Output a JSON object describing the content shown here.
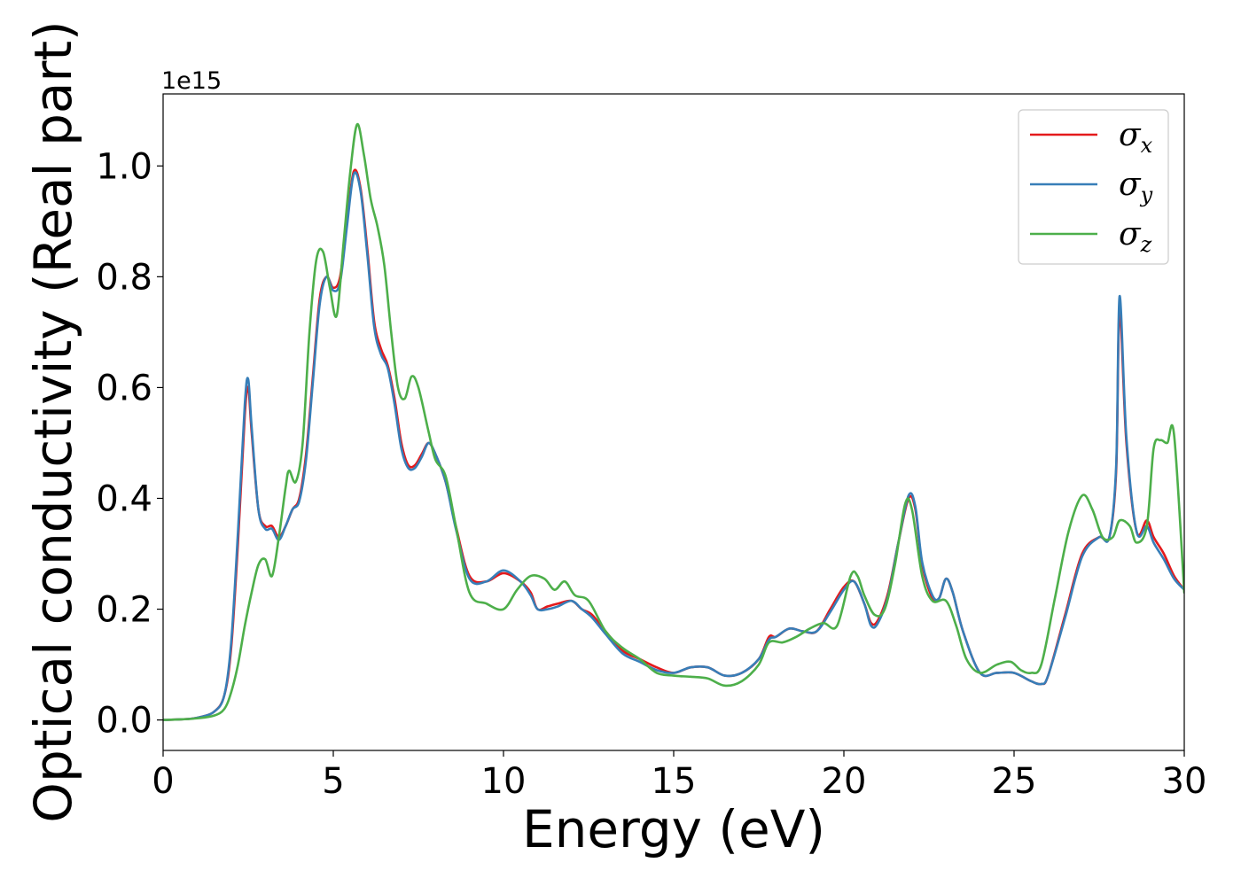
{
  "chart_data": {
    "type": "line",
    "xlabel": "Energy (eV)",
    "ylabel": "Optical conductivity (Real part)",
    "y_offset_text": "1e15",
    "xlim": [
      0,
      30
    ],
    "ylim": [
      -0.055,
      1.13
    ],
    "y_scale_factor": 1000000000000000.0,
    "x_ticks": [
      0,
      5,
      10,
      15,
      20,
      25,
      30
    ],
    "x_tick_labels": [
      "0",
      "5",
      "10",
      "15",
      "20",
      "25",
      "30"
    ],
    "y_ticks": [
      0.0,
      0.2,
      0.4,
      0.6,
      0.8,
      1.0
    ],
    "y_tick_labels": [
      "0.0",
      "0.2",
      "0.4",
      "0.6",
      "0.8",
      "1.0"
    ],
    "grid": false,
    "legend_position": "top-right",
    "series": [
      {
        "name": "σx",
        "symbol": "σ",
        "subscript": "x",
        "color": "#e41a1c",
        "x": [
          0,
          0.5,
          1.0,
          1.5,
          1.8,
          2.0,
          2.2,
          2.4,
          2.5,
          2.6,
          2.8,
          3.0,
          3.2,
          3.4,
          3.6,
          3.8,
          4.0,
          4.2,
          4.4,
          4.6,
          4.8,
          5.0,
          5.2,
          5.4,
          5.6,
          5.8,
          6.0,
          6.2,
          6.4,
          6.6,
          6.8,
          7.0,
          7.2,
          7.4,
          7.6,
          7.8,
          8.0,
          8.3,
          8.6,
          9.0,
          9.5,
          10.0,
          10.5,
          10.8,
          11.0,
          11.3,
          11.6,
          12.0,
          12.3,
          12.6,
          13.0,
          13.5,
          14.0,
          14.5,
          15.0,
          15.5,
          16.0,
          16.5,
          17.0,
          17.5,
          17.8,
          18.0,
          18.4,
          18.8,
          19.2,
          19.6,
          20.0,
          20.3,
          20.6,
          20.8,
          21.0,
          21.3,
          21.6,
          21.9,
          22.1,
          22.3,
          22.6,
          22.8,
          23.0,
          23.2,
          23.5,
          24.0,
          24.5,
          25.0,
          25.5,
          25.8,
          26.0,
          26.5,
          27.0,
          27.5,
          27.8,
          28.0,
          28.1,
          28.3,
          28.6,
          28.9,
          29.1,
          29.4,
          29.7,
          30.0
        ],
        "values": [
          0.0,
          0.001,
          0.004,
          0.015,
          0.045,
          0.13,
          0.32,
          0.55,
          0.6,
          0.52,
          0.38,
          0.35,
          0.35,
          0.33,
          0.35,
          0.38,
          0.4,
          0.48,
          0.62,
          0.76,
          0.8,
          0.78,
          0.8,
          0.9,
          0.99,
          0.96,
          0.85,
          0.72,
          0.67,
          0.64,
          0.58,
          0.5,
          0.46,
          0.46,
          0.48,
          0.5,
          0.48,
          0.43,
          0.35,
          0.26,
          0.25,
          0.265,
          0.25,
          0.23,
          0.2,
          0.205,
          0.21,
          0.215,
          0.2,
          0.19,
          0.16,
          0.125,
          0.11,
          0.095,
          0.085,
          0.095,
          0.095,
          0.08,
          0.085,
          0.11,
          0.15,
          0.15,
          0.165,
          0.16,
          0.16,
          0.2,
          0.24,
          0.25,
          0.21,
          0.175,
          0.18,
          0.23,
          0.32,
          0.4,
          0.38,
          0.28,
          0.22,
          0.22,
          0.255,
          0.23,
          0.16,
          0.085,
          0.085,
          0.085,
          0.07,
          0.065,
          0.08,
          0.19,
          0.3,
          0.33,
          0.33,
          0.45,
          0.74,
          0.5,
          0.34,
          0.36,
          0.33,
          0.3,
          0.26,
          0.235
        ]
      },
      {
        "name": "σy",
        "symbol": "σ",
        "subscript": "y",
        "color": "#377eb8",
        "x": [
          0,
          0.5,
          1.0,
          1.5,
          1.8,
          2.0,
          2.2,
          2.4,
          2.5,
          2.6,
          2.8,
          3.0,
          3.2,
          3.4,
          3.6,
          3.8,
          4.0,
          4.2,
          4.4,
          4.6,
          4.8,
          5.0,
          5.2,
          5.4,
          5.6,
          5.8,
          6.0,
          6.2,
          6.4,
          6.6,
          6.8,
          7.0,
          7.2,
          7.4,
          7.6,
          7.8,
          8.0,
          8.3,
          8.6,
          9.0,
          9.5,
          10.0,
          10.5,
          10.8,
          11.0,
          11.3,
          11.6,
          12.0,
          12.3,
          12.6,
          13.0,
          13.5,
          14.0,
          14.5,
          15.0,
          15.5,
          16.0,
          16.5,
          17.0,
          17.5,
          17.8,
          18.0,
          18.4,
          18.8,
          19.2,
          19.6,
          20.0,
          20.3,
          20.6,
          20.8,
          21.0,
          21.3,
          21.6,
          21.9,
          22.1,
          22.3,
          22.6,
          22.8,
          23.0,
          23.2,
          23.5,
          24.0,
          24.5,
          25.0,
          25.5,
          25.8,
          26.0,
          26.5,
          27.0,
          27.5,
          27.8,
          28.0,
          28.1,
          28.3,
          28.6,
          28.9,
          29.1,
          29.4,
          29.7,
          30.0
        ],
        "values": [
          0.0,
          0.001,
          0.004,
          0.015,
          0.045,
          0.14,
          0.34,
          0.57,
          0.615,
          0.53,
          0.38,
          0.345,
          0.345,
          0.325,
          0.35,
          0.38,
          0.395,
          0.47,
          0.61,
          0.75,
          0.8,
          0.775,
          0.79,
          0.89,
          0.985,
          0.955,
          0.84,
          0.71,
          0.66,
          0.635,
          0.57,
          0.49,
          0.455,
          0.455,
          0.475,
          0.5,
          0.48,
          0.43,
          0.345,
          0.255,
          0.25,
          0.27,
          0.25,
          0.225,
          0.2,
          0.2,
          0.205,
          0.215,
          0.2,
          0.185,
          0.155,
          0.12,
          0.105,
          0.09,
          0.085,
          0.095,
          0.095,
          0.08,
          0.085,
          0.11,
          0.145,
          0.15,
          0.165,
          0.16,
          0.16,
          0.195,
          0.235,
          0.25,
          0.21,
          0.17,
          0.175,
          0.225,
          0.32,
          0.405,
          0.385,
          0.285,
          0.225,
          0.22,
          0.255,
          0.23,
          0.16,
          0.085,
          0.085,
          0.085,
          0.07,
          0.065,
          0.08,
          0.185,
          0.295,
          0.33,
          0.33,
          0.46,
          0.765,
          0.51,
          0.34,
          0.35,
          0.32,
          0.29,
          0.255,
          0.235
        ]
      },
      {
        "name": "σz",
        "symbol": "σ",
        "subscript": "z",
        "color": "#4daf4a",
        "x": [
          0,
          0.5,
          1.0,
          1.5,
          1.8,
          2.0,
          2.2,
          2.4,
          2.6,
          2.8,
          3.0,
          3.2,
          3.4,
          3.6,
          3.7,
          3.9,
          4.1,
          4.3,
          4.5,
          4.7,
          4.9,
          5.1,
          5.3,
          5.5,
          5.7,
          5.9,
          6.1,
          6.3,
          6.5,
          6.7,
          6.9,
          7.1,
          7.3,
          7.5,
          7.8,
          8.0,
          8.3,
          8.6,
          9.0,
          9.5,
          10.0,
          10.4,
          10.8,
          11.2,
          11.5,
          11.8,
          12.1,
          12.5,
          13.0,
          13.5,
          14.0,
          14.5,
          15.0,
          15.5,
          16.0,
          16.5,
          17.0,
          17.5,
          17.8,
          18.2,
          18.6,
          19.0,
          19.4,
          19.8,
          20.2,
          20.4,
          20.6,
          20.9,
          21.2,
          21.5,
          21.8,
          22.0,
          22.3,
          22.6,
          23.0,
          23.3,
          23.6,
          24.0,
          24.5,
          24.9,
          25.2,
          25.5,
          25.8,
          26.2,
          26.6,
          27.0,
          27.3,
          27.6,
          27.9,
          28.1,
          28.4,
          28.6,
          28.9,
          29.1,
          29.3,
          29.5,
          29.7,
          30.0
        ],
        "values": [
          0.0,
          0.001,
          0.003,
          0.008,
          0.02,
          0.05,
          0.1,
          0.17,
          0.23,
          0.28,
          0.29,
          0.26,
          0.33,
          0.42,
          0.45,
          0.43,
          0.5,
          0.7,
          0.83,
          0.845,
          0.78,
          0.73,
          0.86,
          0.99,
          1.075,
          1.02,
          0.94,
          0.89,
          0.82,
          0.7,
          0.6,
          0.58,
          0.62,
          0.6,
          0.52,
          0.47,
          0.44,
          0.35,
          0.23,
          0.21,
          0.2,
          0.235,
          0.26,
          0.255,
          0.235,
          0.25,
          0.225,
          0.215,
          0.16,
          0.13,
          0.11,
          0.085,
          0.08,
          0.078,
          0.075,
          0.062,
          0.07,
          0.1,
          0.14,
          0.14,
          0.15,
          0.165,
          0.175,
          0.17,
          0.26,
          0.26,
          0.225,
          0.19,
          0.2,
          0.28,
          0.39,
          0.38,
          0.26,
          0.215,
          0.215,
          0.17,
          0.11,
          0.085,
          0.1,
          0.105,
          0.09,
          0.085,
          0.1,
          0.22,
          0.34,
          0.405,
          0.38,
          0.33,
          0.33,
          0.36,
          0.35,
          0.32,
          0.35,
          0.49,
          0.505,
          0.5,
          0.515,
          0.23
        ]
      }
    ]
  }
}
